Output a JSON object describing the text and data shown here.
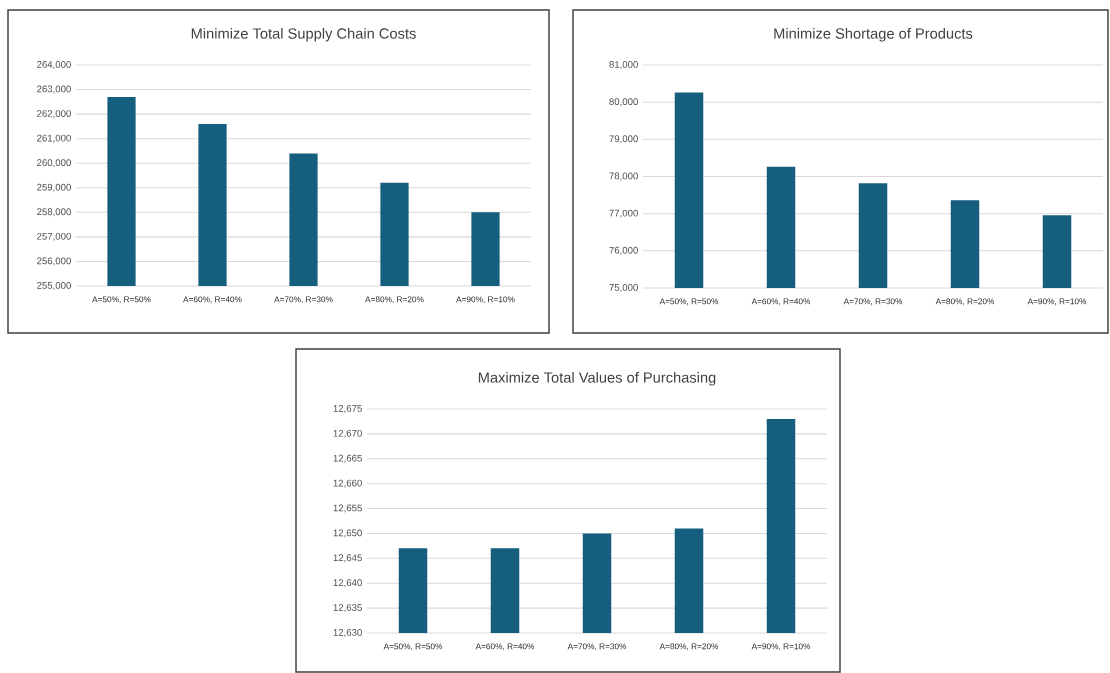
{
  "chart_data": [
    {
      "type": "bar",
      "title": "Minimize Total Supply Chain Costs",
      "categories": [
        "A=50%, R=50%",
        "A=60%, R=40%",
        "A=70%, R=30%",
        "A=80%, R=20%",
        "A=90%, R=10%"
      ],
      "values": [
        262700,
        261600,
        260400,
        259200,
        258000
      ],
      "color": "#165e7e",
      "ylim": [
        255000,
        264000
      ],
      "yticks": [
        {
          "value": 255000,
          "label": "255,000"
        },
        {
          "value": 256000,
          "label": "256,000"
        },
        {
          "value": 257000,
          "label": "257,000"
        },
        {
          "value": 258000,
          "label": "258,000"
        },
        {
          "value": 259000,
          "label": "259,000"
        },
        {
          "value": 260000,
          "label": "260,000"
        },
        {
          "value": 261000,
          "label": "261,000"
        },
        {
          "value": 262000,
          "label": "262,000"
        },
        {
          "value": 263000,
          "label": "263,000"
        },
        {
          "value": 264000,
          "label": "264,000"
        }
      ],
      "grid": "y"
    },
    {
      "type": "bar",
      "title": "Minimize Shortage of Products",
      "categories": [
        "A=50%, R=50%",
        "A=60%, R=40%",
        "A=70%, R=30%",
        "A=80%, R=20%",
        "A=90%, R=10%"
      ],
      "values": [
        80260,
        78260,
        77820,
        77360,
        76960
      ],
      "color": "#165e7e",
      "ylim": [
        75000,
        81000
      ],
      "yticks": [
        {
          "value": 75000,
          "label": "75,000"
        },
        {
          "value": 76000,
          "label": "76,000"
        },
        {
          "value": 77000,
          "label": "77,000"
        },
        {
          "value": 78000,
          "label": "78,000"
        },
        {
          "value": 79000,
          "label": "79,000"
        },
        {
          "value": 80000,
          "label": "80,000"
        },
        {
          "value": 81000,
          "label": "81,000"
        }
      ],
      "grid": "y"
    },
    {
      "type": "bar",
      "title": "Maximize Total Values of Purchasing",
      "categories": [
        "A=50%, R=50%",
        "A=60%, R=40%",
        "A=70%, R=30%",
        "A=80%, R=20%",
        "A=90%, R=10%"
      ],
      "values": [
        12647,
        12647,
        12650,
        12651,
        12673
      ],
      "color": "#165e7e",
      "ylim": [
        12630,
        12675
      ],
      "yticks": [
        {
          "value": 12630,
          "label": "12,630"
        },
        {
          "value": 12635,
          "label": "12,635"
        },
        {
          "value": 12640,
          "label": "12,640"
        },
        {
          "value": 12645,
          "label": "12,645"
        },
        {
          "value": 12650,
          "label": "12,650"
        },
        {
          "value": 12655,
          "label": "12,655"
        },
        {
          "value": 12660,
          "label": "12,660"
        },
        {
          "value": 12665,
          "label": "12,665"
        },
        {
          "value": 12670,
          "label": "12,670"
        },
        {
          "value": 12675,
          "label": "12,675"
        }
      ],
      "grid": "y"
    }
  ]
}
